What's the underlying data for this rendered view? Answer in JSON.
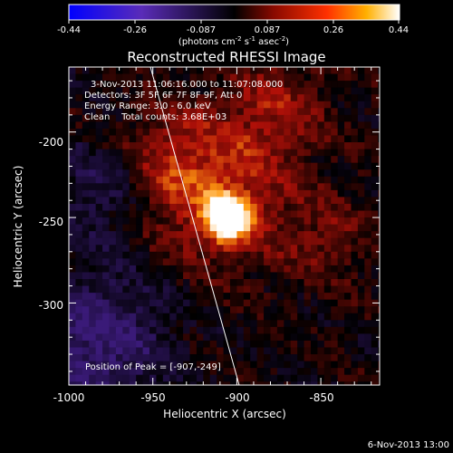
{
  "colorbar": {
    "tick_labels": [
      "-0.44",
      "-0.26",
      "-0.087",
      "0.087",
      "0.26",
      "0.44"
    ],
    "units_main": "(photons cm",
    "units_exp1": "-2",
    "units_mid": " s",
    "units_exp2": "-1",
    "units_tail": " asec",
    "units_exp3": "-2",
    "units_close": ")"
  },
  "title": "Reconstructed RHESSI Image",
  "info": {
    "time_range": "3-Nov-2013 11:06:16.000 to 11:07:08.000",
    "detectors": "Detectors: 3F 5F 6F 7F 8F 9F, Att 0",
    "energy": "Energy Range: 3.0 - 6.0 keV",
    "clean": "Clean    Total counts: 3.68E+03",
    "peak": "Position of Peak = [-907,-249]"
  },
  "footer_date": "6-Nov-2013 13:00",
  "chart_data": {
    "type": "heatmap",
    "title": "Reconstructed RHESSI Image",
    "xlabel": "Heliocentric X (arcsec)",
    "ylabel": "Heliocentric Y (arcsec)",
    "xlim": [
      -1000,
      -815
    ],
    "ylim": [
      -348,
      -162
    ],
    "x_ticks": [
      -1000,
      -950,
      -900,
      -850
    ],
    "x_tick_labels": [
      "-1000",
      "-950",
      "-900",
      "-850"
    ],
    "y_ticks": [
      -200,
      -250,
      -300
    ],
    "y_tick_labels": [
      "-200",
      "-250",
      "-300"
    ],
    "colorbar_range": [
      -0.44,
      0.44
    ],
    "peak_position": [
      -907,
      -249
    ],
    "colormap": "purple-black-red-yellow-white",
    "colors": {
      "neg": "#3a1a78",
      "zero": "#000000",
      "mid": "#b01008",
      "high": "#ff9a10",
      "peak": "#ffffff"
    },
    "sources": [
      {
        "x": -907,
        "y": -249,
        "amp": 0.44,
        "sigma": 9
      },
      {
        "x": -915,
        "y": -235,
        "amp": 0.22,
        "sigma": 28
      },
      {
        "x": -880,
        "y": -185,
        "amp": 0.14,
        "sigma": 22
      },
      {
        "x": -850,
        "y": -260,
        "amp": 0.1,
        "sigma": 20
      },
      {
        "x": -945,
        "y": -210,
        "amp": 0.1,
        "sigma": 20
      },
      {
        "x": -985,
        "y": -320,
        "amp": -0.2,
        "sigma": 30
      },
      {
        "x": -985,
        "y": -230,
        "amp": -0.12,
        "sigma": 20
      }
    ]
  }
}
